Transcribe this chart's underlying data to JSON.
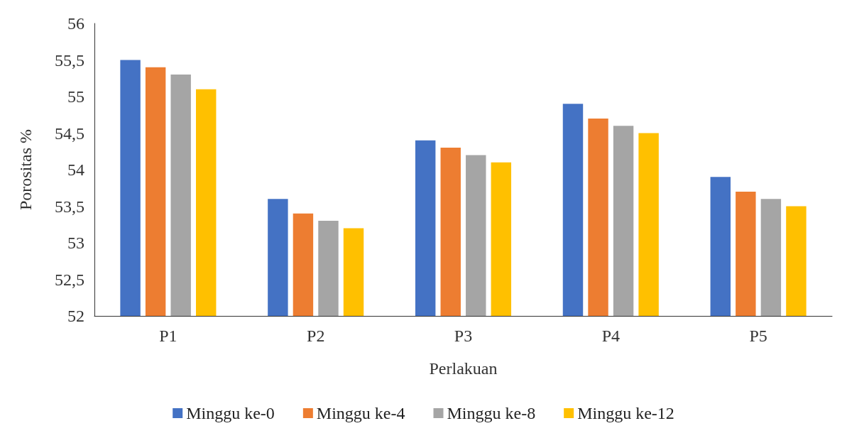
{
  "chart_data": {
    "type": "bar",
    "xlabel": "Perlakuan",
    "ylabel": "Porositas %",
    "categories": [
      "P1",
      "P2",
      "P3",
      "P4",
      "P5"
    ],
    "series": [
      {
        "name": "Minggu ke-0",
        "color": "#4472c4",
        "values": [
          55.5,
          53.6,
          54.4,
          54.9,
          53.9
        ]
      },
      {
        "name": "Minggu ke-4",
        "color": "#ed7d31",
        "values": [
          55.4,
          53.4,
          54.3,
          54.7,
          53.7
        ]
      },
      {
        "name": "Minggu ke-8",
        "color": "#a5a5a5",
        "values": [
          55.3,
          53.3,
          54.2,
          54.6,
          53.6
        ]
      },
      {
        "name": "Minggu ke-12",
        "color": "#ffc000",
        "values": [
          55.1,
          53.2,
          54.1,
          54.5,
          53.5
        ]
      }
    ],
    "ylim": [
      52,
      56
    ],
    "yticks": [
      52,
      {
        "value": 52.5,
        "label": "52,5"
      },
      53,
      {
        "value": 53.5,
        "label": "53,5"
      },
      54,
      {
        "value": 54.5,
        "label": "54,5"
      },
      55,
      {
        "value": 55.5,
        "label": "55,5"
      },
      56
    ],
    "grid": false,
    "legend": "bottom"
  }
}
